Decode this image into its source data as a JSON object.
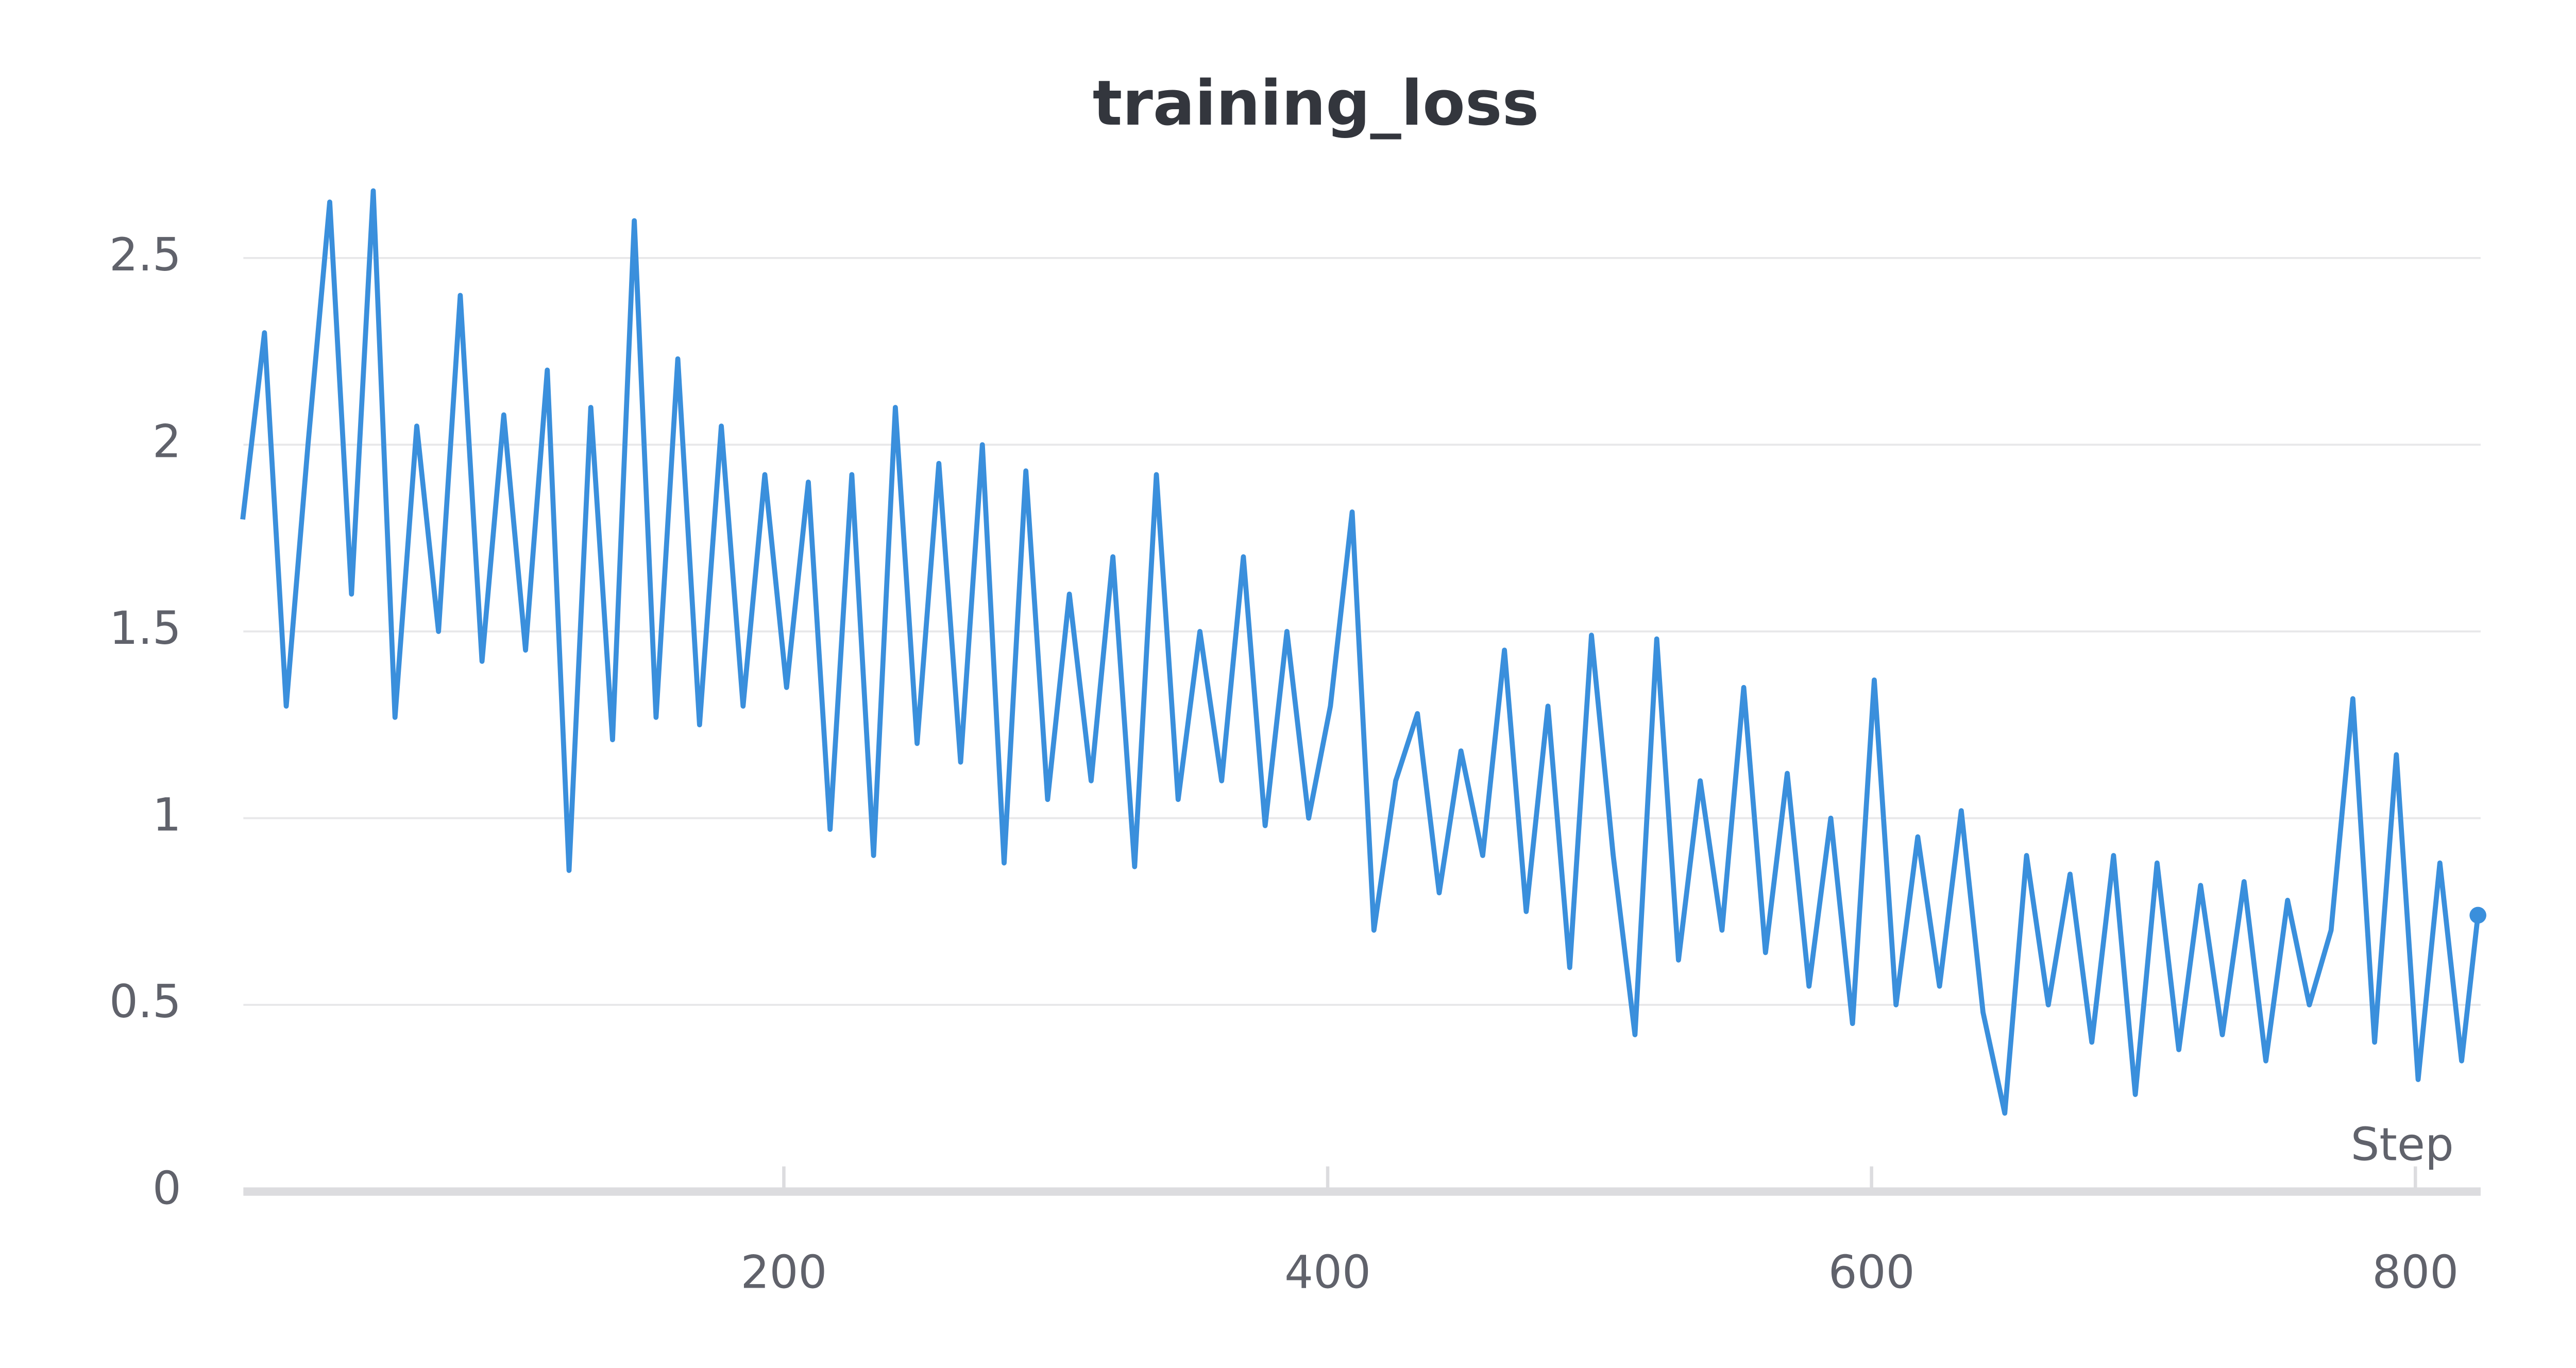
{
  "chart_data": {
    "type": "line",
    "title": "training_loss",
    "x_label": "Step",
    "x": [
      1,
      9,
      17,
      25,
      33,
      41,
      49,
      57,
      65,
      73,
      81,
      89,
      97,
      105,
      113,
      121,
      129,
      137,
      145,
      153,
      161,
      169,
      177,
      185,
      193,
      201,
      209,
      217,
      225,
      233,
      241,
      249,
      257,
      265,
      273,
      281,
      289,
      297,
      305,
      313,
      321,
      329,
      337,
      345,
      353,
      361,
      369,
      377,
      385,
      393,
      401,
      409,
      417,
      425,
      433,
      441,
      449,
      457,
      465,
      473,
      481,
      489,
      497,
      505,
      513,
      521,
      529,
      537,
      545,
      553,
      561,
      569,
      577,
      585,
      593,
      601,
      609,
      617,
      625,
      633,
      641,
      649,
      657,
      665,
      673,
      681,
      689,
      697,
      705,
      713,
      721,
      729,
      737,
      745,
      753,
      761,
      769,
      777,
      785,
      793,
      801,
      809,
      817,
      823
    ],
    "series": [
      {
        "name": "training_loss",
        "color": "#3a8fdc",
        "values": [
          1.8,
          2.3,
          1.3,
          2.0,
          2.65,
          1.6,
          2.68,
          1.27,
          2.05,
          1.5,
          2.4,
          1.42,
          2.08,
          1.45,
          2.2,
          0.86,
          2.1,
          1.21,
          2.6,
          1.27,
          2.23,
          1.25,
          2.05,
          1.3,
          1.92,
          1.35,
          1.9,
          0.97,
          1.92,
          0.9,
          2.1,
          1.2,
          1.95,
          1.15,
          2.0,
          0.88,
          1.93,
          1.05,
          1.6,
          1.1,
          1.7,
          0.87,
          1.92,
          1.05,
          1.5,
          1.1,
          1.7,
          0.98,
          1.5,
          1.0,
          1.3,
          1.82,
          0.7,
          1.1,
          1.28,
          0.8,
          1.18,
          0.9,
          1.45,
          0.75,
          1.3,
          0.6,
          1.49,
          0.9,
          0.42,
          1.48,
          0.62,
          1.1,
          0.7,
          1.35,
          0.64,
          1.12,
          0.55,
          1.0,
          0.45,
          1.37,
          0.5,
          0.95,
          0.55,
          1.02,
          0.48,
          0.21,
          0.9,
          0.5,
          0.85,
          0.4,
          0.9,
          0.26,
          0.88,
          0.38,
          0.82,
          0.42,
          0.83,
          0.35,
          0.78,
          0.5,
          0.7,
          1.32,
          0.4,
          1.17,
          0.3,
          0.88,
          0.35,
          0.74
        ]
      }
    ],
    "xlim": [
      0,
      824
    ],
    "ylim": [
      0,
      2.75
    ],
    "xticks": [
      200,
      400,
      600,
      800
    ],
    "yticks": [
      0,
      0.5,
      1,
      1.5,
      2,
      2.5
    ],
    "grid": true
  }
}
